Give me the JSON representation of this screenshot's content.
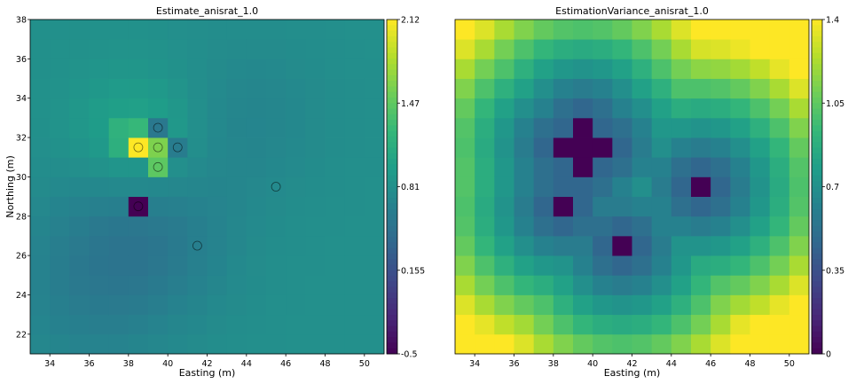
{
  "chart_data": [
    {
      "type": "heatmap",
      "title": "Estimate_anisrat_1.0",
      "xlabel": "Easting (m)",
      "ylabel": "Northing (m)",
      "xlim": [
        33,
        51
      ],
      "ylim": [
        21,
        38
      ],
      "xticks": [
        "34",
        "36",
        "38",
        "40",
        "42",
        "44",
        "46",
        "48",
        "50"
      ],
      "yticks": [
        "22",
        "24",
        "26",
        "28",
        "30",
        "32",
        "34",
        "36",
        "38"
      ],
      "colorbar": {
        "min": -0.5,
        "max": 2.12,
        "ticks": [
          "2.12",
          "1.47",
          "0.81",
          "0.155",
          "-0.5"
        ]
      },
      "colormap": "viridis",
      "baseline_value": 0.81,
      "cells": [
        {
          "x": 38.5,
          "y": 31.5,
          "value": 2.12
        },
        {
          "x": 39.5,
          "y": 31.5,
          "value": 1.6
        },
        {
          "x": 39.5,
          "y": 30.5,
          "value": 1.45
        },
        {
          "x": 39.5,
          "y": 32.5,
          "value": 0.55
        },
        {
          "x": 40.5,
          "y": 31.5,
          "value": 0.6
        },
        {
          "x": 38.5,
          "y": 28.5,
          "value": -0.5
        },
        {
          "x": 37.5,
          "y": 32.5,
          "value": 1.18
        },
        {
          "x": 38.5,
          "y": 32.5,
          "value": 1.25
        },
        {
          "x": 37.5,
          "y": 31.5,
          "value": 1.15
        }
      ],
      "samples": [
        {
          "x": 38.5,
          "y": 31.5
        },
        {
          "x": 39.5,
          "y": 31.5
        },
        {
          "x": 39.5,
          "y": 30.5
        },
        {
          "x": 39.5,
          "y": 32.5
        },
        {
          "x": 40.5,
          "y": 31.5
        },
        {
          "x": 38.5,
          "y": 28.5
        },
        {
          "x": 45.5,
          "y": 29.5
        },
        {
          "x": 41.5,
          "y": 26.5
        }
      ]
    },
    {
      "type": "heatmap",
      "title": "EstimationVariance_anisrat_1.0",
      "xlabel": "Easting (m)",
      "ylabel": "",
      "xlim": [
        33,
        51
      ],
      "ylim": [
        21,
        38
      ],
      "xticks": [
        "34",
        "36",
        "38",
        "40",
        "42",
        "44",
        "46",
        "48",
        "50"
      ],
      "yticks": [],
      "colorbar": {
        "min": 0,
        "max": 1.4,
        "ticks": [
          "1.4",
          "1.05",
          "0.7",
          "0.35",
          "0"
        ]
      },
      "colormap": "viridis",
      "zero_cells": [
        {
          "x": 38.5,
          "y": 31.5
        },
        {
          "x": 39.5,
          "y": 31.5
        },
        {
          "x": 40.5,
          "y": 31.5
        },
        {
          "x": 39.5,
          "y": 32.5
        },
        {
          "x": 39.5,
          "y": 30.5
        },
        {
          "x": 38.5,
          "y": 28.5
        },
        {
          "x": 45.5,
          "y": 29.5
        },
        {
          "x": 41.5,
          "y": 26.5
        }
      ]
    }
  ]
}
